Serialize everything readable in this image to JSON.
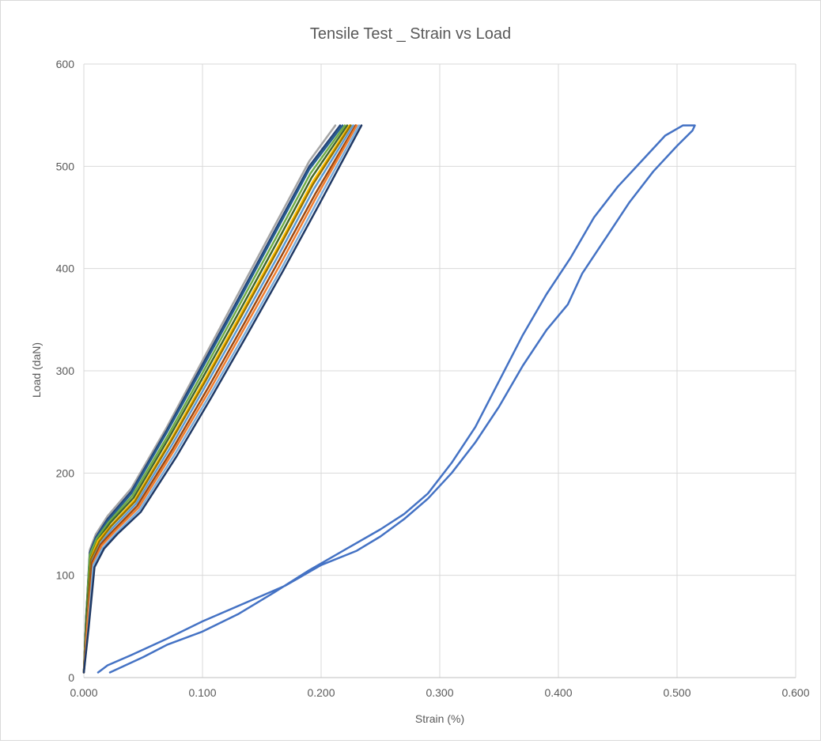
{
  "chart_data": {
    "type": "scatter",
    "title": "Tensile Test _ Strain vs Load",
    "xlabel": "Strain (%)",
    "ylabel": "Load (daN)",
    "xlim": [
      0,
      0.6
    ],
    "ylim": [
      0,
      600
    ],
    "x_ticks": [
      "0.000",
      "0.100",
      "0.200",
      "0.300",
      "0.400",
      "0.500",
      "0.600"
    ],
    "y_ticks": [
      "0",
      "100",
      "200",
      "300",
      "400",
      "500",
      "600"
    ],
    "grid": true,
    "legend": "none",
    "series": [
      {
        "color": "#a5a5a5",
        "x": [
          0.0,
          0.002,
          0.005,
          0.01,
          0.02,
          0.04,
          0.07,
          0.1,
          0.13,
          0.16,
          0.19,
          0.212
        ],
        "y": [
          5,
          60,
          125,
          140,
          158,
          185,
          245,
          310,
          375,
          440,
          505,
          540
        ]
      },
      {
        "color": "#264478",
        "x": [
          0.0,
          0.002,
          0.005,
          0.01,
          0.02,
          0.04,
          0.07,
          0.1,
          0.13,
          0.16,
          0.19,
          0.216
        ],
        "y": [
          5,
          60,
          122,
          137,
          155,
          182,
          242,
          306,
          370,
          435,
          500,
          540
        ]
      },
      {
        "color": "#255e91",
        "x": [
          0.0,
          0.002,
          0.005,
          0.01,
          0.02,
          0.04,
          0.07,
          0.1,
          0.13,
          0.16,
          0.19,
          0.218
        ],
        "y": [
          5,
          58,
          120,
          136,
          153,
          180,
          240,
          303,
          367,
          432,
          497,
          540
        ]
      },
      {
        "color": "#70ad47",
        "x": [
          0.0,
          0.002,
          0.005,
          0.011,
          0.021,
          0.041,
          0.071,
          0.101,
          0.131,
          0.161,
          0.191,
          0.22
        ],
        "y": [
          5,
          58,
          120,
          136,
          152,
          178,
          237,
          300,
          364,
          428,
          493,
          540
        ]
      },
      {
        "color": "#43682b",
        "x": [
          0.0,
          0.002,
          0.006,
          0.012,
          0.022,
          0.042,
          0.072,
          0.102,
          0.132,
          0.162,
          0.192,
          0.222
        ],
        "y": [
          5,
          57,
          118,
          135,
          151,
          176,
          235,
          297,
          360,
          424,
          489,
          540
        ]
      },
      {
        "color": "#ffc000",
        "x": [
          0.0,
          0.003,
          0.006,
          0.012,
          0.023,
          0.043,
          0.073,
          0.103,
          0.133,
          0.163,
          0.193,
          0.224
        ],
        "y": [
          5,
          56,
          117,
          134,
          149,
          174,
          232,
          294,
          357,
          420,
          485,
          540
        ]
      },
      {
        "color": "#997300",
        "x": [
          0.0,
          0.003,
          0.006,
          0.013,
          0.023,
          0.043,
          0.073,
          0.103,
          0.133,
          0.163,
          0.193,
          0.225
        ],
        "y": [
          5,
          55,
          116,
          133,
          148,
          172,
          230,
          291,
          354,
          417,
          482,
          540
        ]
      },
      {
        "color": "#5b9bd5",
        "x": [
          0.0,
          0.003,
          0.007,
          0.014,
          0.024,
          0.044,
          0.074,
          0.104,
          0.134,
          0.164,
          0.194,
          0.227
        ],
        "y": [
          5,
          54,
          114,
          131,
          146,
          170,
          227,
          288,
          350,
          413,
          478,
          540
        ]
      },
      {
        "color": "#9e480e",
        "x": [
          0.0,
          0.003,
          0.007,
          0.014,
          0.025,
          0.045,
          0.075,
          0.105,
          0.135,
          0.165,
          0.195,
          0.229
        ],
        "y": [
          5,
          53,
          113,
          130,
          144,
          168,
          224,
          284,
          346,
          409,
          473,
          540
        ]
      },
      {
        "color": "#ed7d31",
        "x": [
          0.0,
          0.003,
          0.008,
          0.015,
          0.026,
          0.046,
          0.076,
          0.106,
          0.136,
          0.166,
          0.196,
          0.23
        ],
        "y": [
          5,
          52,
          112,
          129,
          143,
          166,
          222,
          281,
          343,
          405,
          470,
          540
        ]
      },
      {
        "color": "#7cafdd",
        "x": [
          0.0,
          0.004,
          0.008,
          0.016,
          0.027,
          0.047,
          0.077,
          0.107,
          0.137,
          0.167,
          0.197,
          0.232
        ],
        "y": [
          5,
          50,
          110,
          127,
          141,
          164,
          219,
          278,
          339,
          401,
          466,
          540
        ]
      },
      {
        "color": "#1f3864",
        "x": [
          0.0,
          0.004,
          0.009,
          0.017,
          0.028,
          0.048,
          0.078,
          0.108,
          0.138,
          0.168,
          0.198,
          0.234
        ],
        "y": [
          5,
          48,
          108,
          126,
          140,
          162,
          216,
          275,
          336,
          398,
          462,
          540
        ]
      },
      {
        "color": "#4472c4",
        "x": [
          0.022,
          0.035,
          0.05,
          0.07,
          0.1,
          0.13,
          0.16,
          0.19,
          0.22,
          0.25,
          0.27,
          0.29,
          0.31,
          0.33,
          0.35,
          0.37,
          0.39,
          0.41,
          0.43,
          0.45,
          0.47,
          0.49,
          0.505,
          0.515,
          0.513,
          0.5,
          0.48,
          0.46,
          0.44,
          0.42,
          0.408,
          0.39,
          0.37,
          0.35,
          0.33,
          0.31,
          0.29,
          0.27,
          0.25,
          0.23,
          0.2,
          0.17,
          0.14,
          0.1,
          0.07,
          0.04,
          0.02,
          0.012
        ],
        "y": [
          5,
          12,
          20,
          32,
          45,
          62,
          83,
          105,
          125,
          145,
          160,
          180,
          210,
          245,
          290,
          335,
          375,
          410,
          450,
          480,
          505,
          530,
          540,
          540,
          535,
          520,
          495,
          465,
          430,
          395,
          365,
          340,
          305,
          265,
          230,
          200,
          175,
          155,
          138,
          124,
          110,
          90,
          75,
          55,
          38,
          22,
          12,
          5
        ]
      }
    ]
  }
}
